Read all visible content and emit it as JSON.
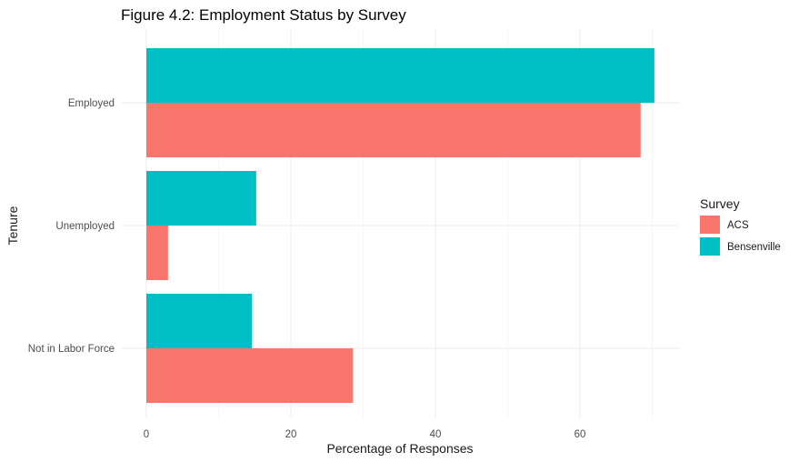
{
  "chart_data": {
    "type": "bar",
    "orientation": "horizontal",
    "title": "Figure 4.2: Employment Status by Survey",
    "xlabel": "Percentage of Responses",
    "ylabel": "Tenure",
    "xlim": [
      0,
      74
    ],
    "xticks": [
      0,
      20,
      40,
      60
    ],
    "categories": [
      "Employed",
      "Unemployed",
      "Not in Labor Force"
    ],
    "series": [
      {
        "name": "ACS",
        "color": "#F8766D",
        "values": [
          68.4,
          3.0,
          28.6
        ]
      },
      {
        "name": "Bensenville",
        "color": "#00BFC4",
        "values": [
          70.3,
          15.2,
          14.6
        ]
      }
    ],
    "legend": {
      "title": "Survey",
      "position": "right"
    },
    "grid": true
  }
}
